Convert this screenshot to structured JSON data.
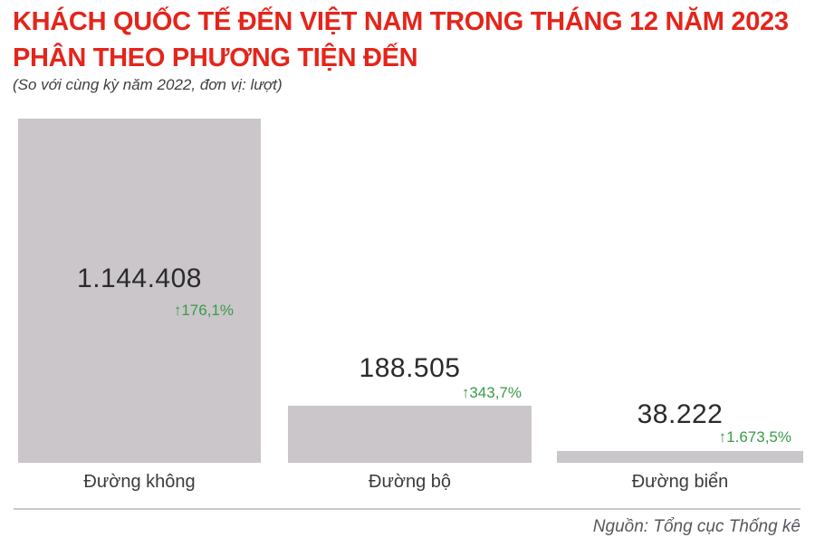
{
  "header": {
    "title_line1": "KHÁCH QUỐC TẾ ĐẾN VIỆT NAM TRONG THÁNG 12 NĂM 2023",
    "title_line2": "PHÂN THEO PHƯƠNG TIỆN ĐẾN",
    "subtitle": "(So với cùng kỳ năm 2022, đơn vị: lượt)",
    "title_color": "#e4251b"
  },
  "chart_data": {
    "type": "bar",
    "title": "KHÁCH QUỐC TẾ ĐẾN VIỆT NAM TRONG THÁNG 12 NĂM 2023 PHÂN THEO PHƯƠNG TIỆN ĐẾN",
    "subtitle": "(So với cùng kỳ năm 2022, đơn vị: lượt)",
    "categories": [
      "Đường không",
      "Đường bộ",
      "Đường biển"
    ],
    "values": [
      1144408,
      188505,
      38222
    ],
    "value_labels": [
      "1.144.408",
      "188.505",
      "38.222"
    ],
    "changes": [
      "↑176,1%",
      "↑343,7%",
      "↑1.673,5%"
    ],
    "unit": "lượt",
    "comparison_base": "cùng kỳ năm 2022",
    "ylim": [
      0,
      1144408
    ],
    "grid": false,
    "legend": "none",
    "value_label_position": [
      "inside",
      "above",
      "above"
    ],
    "bar_color": "#cac6ca",
    "value_color": "#2b2b2b",
    "change_color": "#3b9b47"
  },
  "footer": {
    "source": "Nguồn: Tổng cục Thống kê"
  }
}
